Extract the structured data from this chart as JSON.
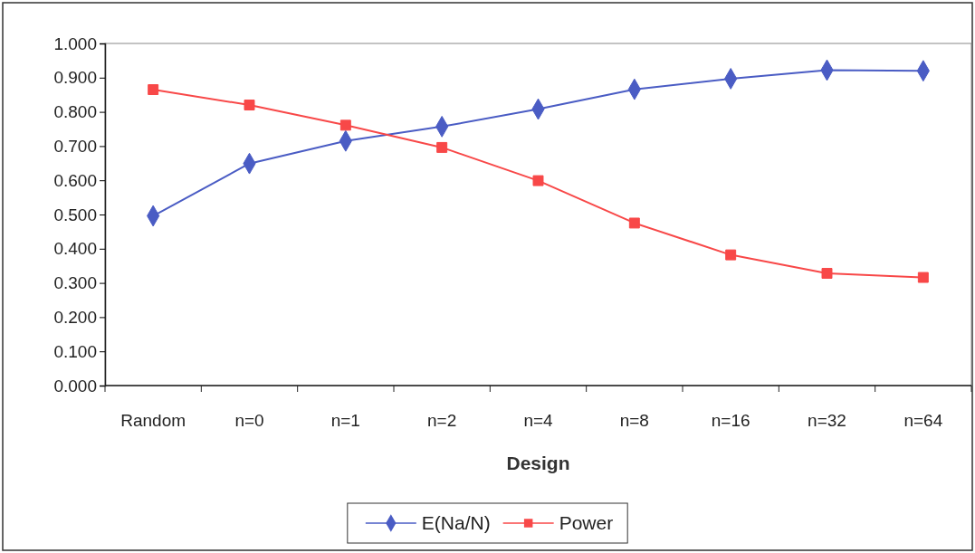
{
  "chart_data": {
    "type": "line",
    "xlabel": "Design",
    "categories": [
      "Random",
      "n=0",
      "n=1",
      "n=2",
      "n=4",
      "n=8",
      "n=16",
      "n=32",
      "n=64"
    ],
    "series": [
      {
        "name": "E(Na/N)",
        "color": "#4a5cc4",
        "marker": "diamond",
        "values": [
          0.496,
          0.649,
          0.715,
          0.757,
          0.808,
          0.866,
          0.897,
          0.922,
          0.92
        ]
      },
      {
        "name": "Power",
        "color": "#f84848",
        "marker": "square",
        "values": [
          0.865,
          0.82,
          0.761,
          0.696,
          0.599,
          0.475,
          0.382,
          0.328,
          0.316
        ]
      }
    ],
    "ylim": [
      0,
      1
    ],
    "yticks": [
      {
        "value": 0,
        "label": "0.000"
      },
      {
        "value": 0.1,
        "label": "0.100"
      },
      {
        "value": 0.2,
        "label": "0.200"
      },
      {
        "value": 0.3,
        "label": "0.300"
      },
      {
        "value": 0.4,
        "label": "0.400"
      },
      {
        "value": 0.5,
        "label": "0.500"
      },
      {
        "value": 0.6,
        "label": "0.600"
      },
      {
        "value": 0.7,
        "label": "0.700"
      },
      {
        "value": 0.8,
        "label": "0.800"
      },
      {
        "value": 0.9,
        "label": "0.900"
      },
      {
        "value": 1,
        "label": "1.000"
      }
    ],
    "grid": false,
    "legend": "bottom",
    "line_style": "solid"
  }
}
